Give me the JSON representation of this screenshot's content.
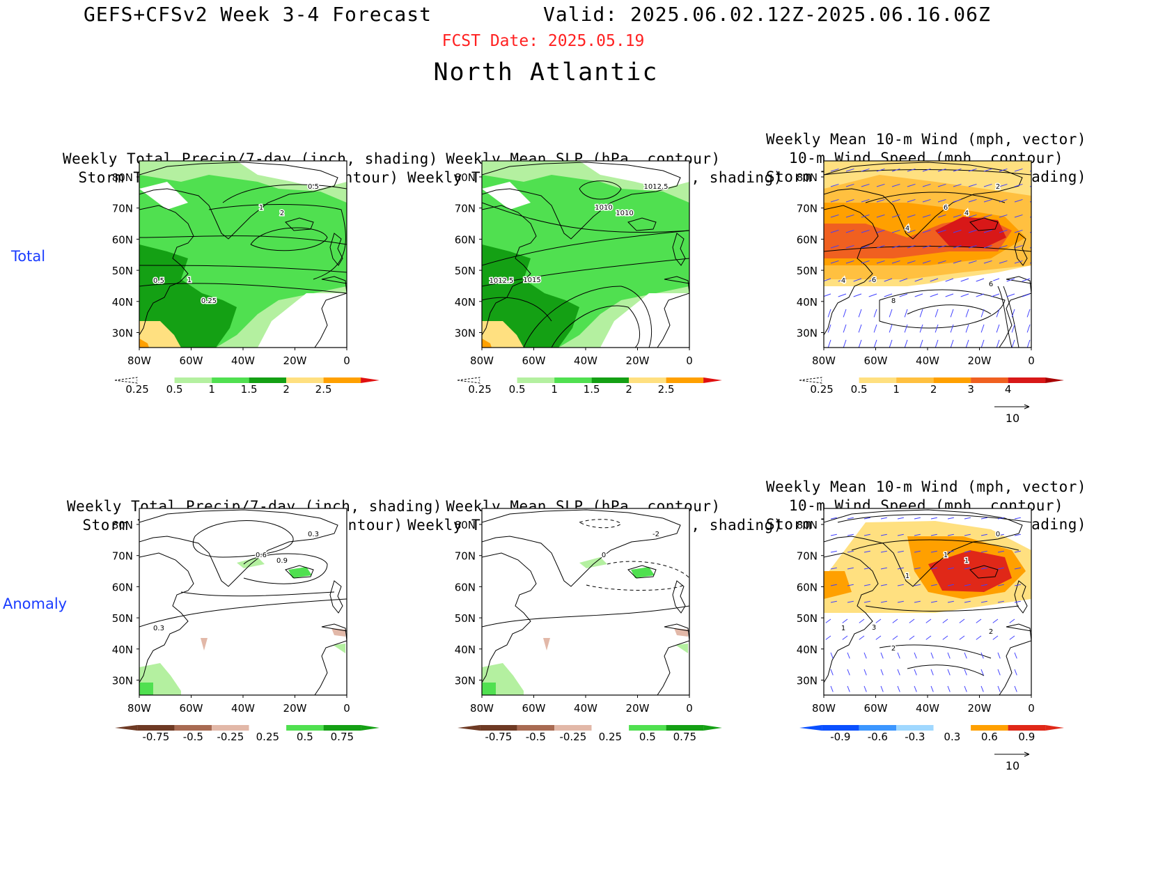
{
  "header": {
    "title": "GEFS+CFSv2 Week 3-4 Forecast",
    "valid": "Valid: 2025.06.02.12Z-2025.06.16.06Z",
    "fcst_date": "FCST Date: 2025.05.19",
    "region": "North Atlantic"
  },
  "row_labels": [
    "Total",
    "Anomaly"
  ],
  "axes": {
    "lat_ticks": [
      "80N",
      "70N",
      "60N",
      "50N",
      "40N",
      "30N"
    ],
    "lon_ticks": [
      "80W",
      "60W",
      "40W",
      "20W",
      "0"
    ]
  },
  "panels": [
    {
      "title": [
        "Weekly Total Precip/7-day (inch, shading)",
        "Storm Track Density/7-day (contour)"
      ],
      "contour_labels": [
        "0.5",
        "1",
        "2",
        "0.5",
        "1",
        "0.25"
      ],
      "colorbar": [
        "0.25",
        "0.5",
        "1",
        "1.5",
        "2",
        "2.5"
      ]
    },
    {
      "title": [
        "Weekly Mean SLP (hPa, contour)",
        "Weekly Total Precip/7-day (inch, shading)"
      ],
      "contour_labels": [
        "1012.5",
        "1010",
        "1010",
        "1012.5",
        "1015"
      ],
      "colorbar": [
        "0.25",
        "0.5",
        "1",
        "1.5",
        "2",
        "2.5"
      ]
    },
    {
      "title": [
        "Weekly Mean 10-m Wind (mph, vector)",
        "10-m Wind Speed (mph, contour)",
        "Storm Track Density/7-day (shading)"
      ],
      "contour_labels": [
        "2",
        "6",
        "4",
        "4",
        "6",
        "8",
        "6",
        "4"
      ],
      "colorbar": [
        "0.25",
        "0.5",
        "1",
        "2",
        "3",
        "4"
      ],
      "vector_ref": "10"
    },
    {
      "title": [
        "Weekly Total Precip/7-day (inch, shading)",
        "Storm Track Density/7-day (contour)"
      ],
      "contour_labels": [
        "0.3",
        "0.6",
        "0.9",
        "0.3"
      ],
      "colorbar": [
        "-0.75",
        "-0.5",
        "-0.25",
        "0.25",
        "0.5",
        "0.75"
      ]
    },
    {
      "title": [
        "Weekly Mean SLP (hPa, contour)",
        "Weekly Total Precip/7-day (inch, shading)"
      ],
      "contour_labels": [
        "-2",
        "0"
      ],
      "colorbar": [
        "-0.75",
        "-0.5",
        "-0.25",
        "0.25",
        "0.5",
        "0.75"
      ]
    },
    {
      "title": [
        "Weekly Mean 10-m Wind (mph, vector)",
        "10-m Wind Speed (mph, contour)",
        "Storm Track Density/7-day (shading)"
      ],
      "contour_labels": [
        "0",
        "1",
        "1",
        "1",
        "3",
        "2",
        "2",
        "1"
      ],
      "colorbar": [
        "-0.9",
        "-0.6",
        "-0.3",
        "0.3",
        "0.6",
        "0.9"
      ],
      "vector_ref": "10"
    }
  ],
  "colors": {
    "precip": [
      "#ffffff",
      "#b4f0a0",
      "#50e050",
      "#14a014",
      "#ffe080",
      "#ffa000",
      "#e01010"
    ],
    "anom": [
      "#6e3a24",
      "#a86a52",
      "#e2b8a8",
      "#ffffff",
      "#b4f0a0",
      "#50e050",
      "#14a014"
    ],
    "track": [
      "#ffffff",
      "#ffe080",
      "#ffc040",
      "#ffa000",
      "#f06020",
      "#d81818",
      "#a80000"
    ],
    "track_anom": [
      "#0a50ff",
      "#3c96ff",
      "#a0d8ff",
      "#ffffff",
      "#ffe080",
      "#ffa000",
      "#e02818"
    ],
    "header_red": "#ff2020",
    "row_label_blue": "#1a3cff",
    "vector": "#4040ff"
  }
}
